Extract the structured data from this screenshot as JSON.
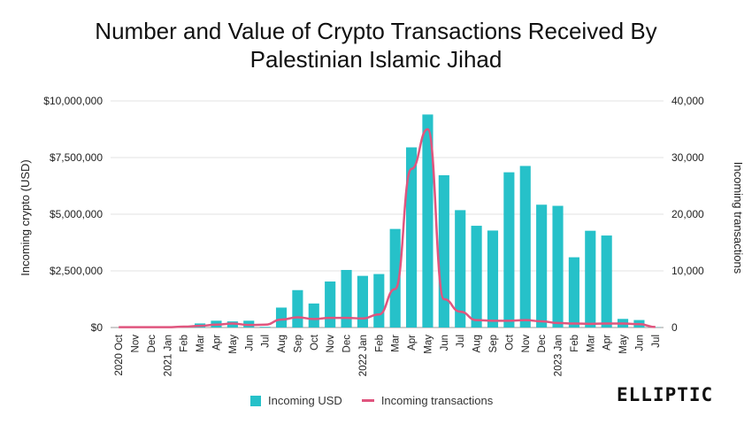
{
  "title_line1": "Number and Value of Crypto Transactions Received By",
  "title_line2": "Palestinian Islamic Jihad",
  "brand": "ELLIPTIC",
  "colors": {
    "bar": "#26c1c9",
    "line": "#e0557e",
    "grid": "#e3e3e3",
    "axis": "#333333"
  },
  "chart_data": {
    "type": "bar",
    "title": "Number and Value of Crypto Transactions Received By Palestinian Islamic Jihad",
    "categories": [
      "2020 Oct",
      "Nov",
      "Dec",
      "2021 Jan",
      "Feb",
      "Mar",
      "Apr",
      "May",
      "Jun",
      "Jul",
      "Aug",
      "Sep",
      "Oct",
      "Nov",
      "Dec",
      "2022 Jan",
      "Feb",
      "Mar",
      "Apr",
      "May",
      "Jun",
      "Jul",
      "Aug",
      "Sep",
      "Oct",
      "Nov",
      "Dec",
      "2023 Jan",
      "Feb",
      "Mar",
      "Apr",
      "May",
      "Jun",
      "Jul"
    ],
    "ylabel": "Incoming crypto (USD)",
    "y2label": "Incoming transactions",
    "ylim": [
      0,
      10000000
    ],
    "y2lim": [
      0,
      40000
    ],
    "yticks": [
      "$0",
      "$2,500,000",
      "$5,000,000",
      "$7,500,000",
      "$10,000,000"
    ],
    "y2ticks": [
      "0",
      "10,000",
      "20,000",
      "30,000",
      "40,000"
    ],
    "grid": true,
    "legend_position": "bottom",
    "series": [
      {
        "name": "Incoming USD",
        "type": "bar",
        "axis": "left",
        "values": [
          0,
          0,
          0,
          0,
          0,
          180000,
          300000,
          270000,
          300000,
          30000,
          880000,
          1650000,
          1060000,
          2030000,
          2540000,
          2280000,
          2360000,
          4350000,
          7950000,
          9400000,
          6720000,
          5180000,
          4490000,
          4280000,
          6850000,
          7130000,
          5420000,
          5370000,
          3100000,
          4270000,
          4060000,
          380000,
          330000,
          10000
        ]
      },
      {
        "name": "Incoming transactions",
        "type": "line",
        "axis": "right",
        "values": [
          50,
          50,
          50,
          50,
          150,
          300,
          500,
          700,
          450,
          500,
          1400,
          1800,
          1500,
          1700,
          1700,
          1600,
          2300,
          6800,
          28000,
          35000,
          5000,
          2800,
          1300,
          1200,
          1200,
          1300,
          1100,
          800,
          700,
          650,
          700,
          700,
          600,
          100
        ]
      }
    ]
  }
}
